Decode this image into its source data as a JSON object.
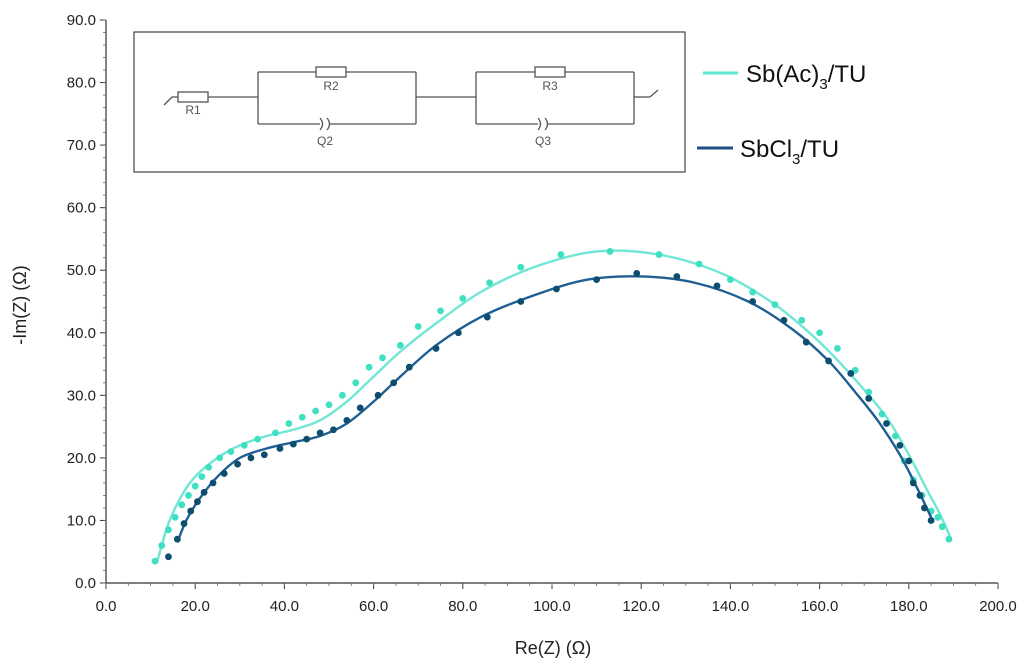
{
  "chart_data": {
    "type": "scatter",
    "xlabel": "Re(Z) (Ω)",
    "ylabel": "-Im(Z) (Ω)",
    "xlim": [
      0,
      200
    ],
    "ylim": [
      0,
      90
    ],
    "x_ticks": [
      "0.0",
      "20.0",
      "40.0",
      "60.0",
      "80.0",
      "100.0",
      "120.0",
      "140.0",
      "160.0",
      "180.0",
      "200.0"
    ],
    "y_ticks": [
      "0.0",
      "10.0",
      "20.0",
      "30.0",
      "40.0",
      "50.0",
      "60.0",
      "70.0",
      "80.0",
      "90.0"
    ],
    "grid": false,
    "legend_position": "top-right",
    "legend": [
      {
        "label_main": "Sb(Ac)",
        "label_sub": "3",
        "label_tail": "/TU",
        "color": "#5ee8cf"
      },
      {
        "label_main": "SbCl",
        "label_sub": "3",
        "label_tail": "/TU",
        "color": "#1d4f86"
      }
    ],
    "series": [
      {
        "name": "Sb(Ac)3/TU",
        "color": "#3fe0c2",
        "points": [
          [
            11,
            3.5
          ],
          [
            12.5,
            6
          ],
          [
            14,
            8.5
          ],
          [
            15.5,
            10.5
          ],
          [
            17,
            12.5
          ],
          [
            18.5,
            14
          ],
          [
            20,
            15.5
          ],
          [
            21.5,
            17
          ],
          [
            23,
            18.5
          ],
          [
            25.5,
            20
          ],
          [
            28,
            21
          ],
          [
            31,
            22
          ],
          [
            34,
            23
          ],
          [
            38,
            24
          ],
          [
            41,
            25.5
          ],
          [
            44,
            26.5
          ],
          [
            47,
            27.5
          ],
          [
            50,
            28.5
          ],
          [
            53,
            30
          ],
          [
            56,
            32
          ],
          [
            59,
            34.5
          ],
          [
            62,
            36
          ],
          [
            66,
            38
          ],
          [
            70,
            41
          ],
          [
            75,
            43.5
          ],
          [
            80,
            45.5
          ],
          [
            86,
            48
          ],
          [
            93,
            50.5
          ],
          [
            102,
            52.5
          ],
          [
            113,
            53
          ],
          [
            124,
            52.5
          ],
          [
            133,
            51
          ],
          [
            140,
            48.5
          ],
          [
            145,
            46.5
          ],
          [
            150,
            44.5
          ],
          [
            156,
            42
          ],
          [
            160,
            40
          ],
          [
            164,
            37.5
          ],
          [
            168,
            34
          ],
          [
            171,
            30.5
          ],
          [
            174,
            27
          ],
          [
            177,
            23.5
          ],
          [
            179,
            19.5
          ],
          [
            181,
            16.5
          ],
          [
            183,
            14
          ],
          [
            185,
            11.5
          ],
          [
            186.5,
            10.5
          ],
          [
            187.5,
            9
          ],
          [
            189,
            7
          ]
        ],
        "fit": [
          [
            11.5,
            3.5
          ],
          [
            14,
            9.5
          ],
          [
            17,
            14
          ],
          [
            20,
            17
          ],
          [
            25,
            20
          ],
          [
            30,
            22
          ],
          [
            36,
            23.5
          ],
          [
            42,
            24.5
          ],
          [
            48,
            26
          ],
          [
            54,
            29
          ],
          [
            60,
            33
          ],
          [
            66,
            37
          ],
          [
            74,
            41.5
          ],
          [
            84,
            46.5
          ],
          [
            96,
            50.5
          ],
          [
            110,
            53
          ],
          [
            124,
            52.5
          ],
          [
            138,
            49.5
          ],
          [
            150,
            44.5
          ],
          [
            160,
            38.5
          ],
          [
            168,
            32.5
          ],
          [
            175,
            26.5
          ],
          [
            180,
            20.5
          ],
          [
            184,
            15
          ],
          [
            187,
            11
          ],
          [
            189.5,
            7
          ]
        ]
      },
      {
        "name": "SbCl3/TU",
        "color": "#0d4d6e",
        "points": [
          [
            14,
            4.2
          ],
          [
            16,
            7
          ],
          [
            17.5,
            9.5
          ],
          [
            19,
            11.5
          ],
          [
            20.5,
            13
          ],
          [
            22,
            14.5
          ],
          [
            24,
            16
          ],
          [
            26.5,
            17.5
          ],
          [
            29.5,
            19
          ],
          [
            32.5,
            20
          ],
          [
            35.5,
            20.5
          ],
          [
            39,
            21.5
          ],
          [
            42,
            22.2
          ],
          [
            45,
            23
          ],
          [
            48,
            24
          ],
          [
            51,
            24.5
          ],
          [
            54,
            26
          ],
          [
            57,
            28
          ],
          [
            61,
            30
          ],
          [
            64.5,
            32
          ],
          [
            68,
            34.5
          ],
          [
            74,
            37.5
          ],
          [
            79,
            40
          ],
          [
            85.5,
            42.5
          ],
          [
            93,
            45
          ],
          [
            101,
            47
          ],
          [
            110,
            48.5
          ],
          [
            119,
            49.5
          ],
          [
            128,
            49
          ],
          [
            137,
            47.5
          ],
          [
            145,
            45
          ],
          [
            152,
            42
          ],
          [
            157,
            38.5
          ],
          [
            162,
            35.5
          ],
          [
            167,
            33.5
          ],
          [
            171,
            29.5
          ],
          [
            175,
            25.5
          ],
          [
            178,
            22
          ],
          [
            180,
            19.5
          ],
          [
            181,
            16
          ],
          [
            182.5,
            14
          ],
          [
            183.5,
            12
          ],
          [
            185,
            10
          ]
        ],
        "fit": [
          [
            16,
            6.5
          ],
          [
            18,
            10
          ],
          [
            21,
            13.5
          ],
          [
            25,
            17
          ],
          [
            30,
            20
          ],
          [
            36,
            21.5
          ],
          [
            42,
            22.5
          ],
          [
            48,
            23.5
          ],
          [
            54,
            25.5
          ],
          [
            60,
            29
          ],
          [
            66,
            33
          ],
          [
            74,
            38
          ],
          [
            84,
            42.5
          ],
          [
            96,
            46
          ],
          [
            108,
            48.5
          ],
          [
            120,
            49
          ],
          [
            132,
            48
          ],
          [
            144,
            45
          ],
          [
            154,
            40.5
          ],
          [
            162,
            35.5
          ],
          [
            168,
            30.5
          ],
          [
            173,
            26
          ],
          [
            178,
            20.5
          ],
          [
            182,
            15
          ],
          [
            185,
            10.5
          ]
        ]
      }
    ],
    "inset": {
      "labels": [
        "R1",
        "R2",
        "Q2",
        "R3",
        "Q3"
      ]
    }
  }
}
